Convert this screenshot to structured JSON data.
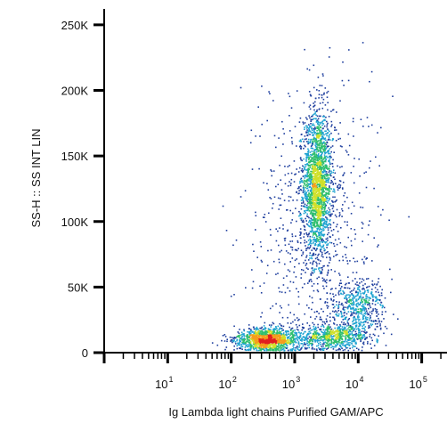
{
  "chart_data": {
    "type": "scatter",
    "style": "flow-cytometry density dot plot",
    "xlabel": "Ig Lambda light chains Purified GAM/APC",
    "ylabel": "SS-H :: SS INT LIN",
    "x_scale": "log",
    "x_range": [
      1,
      250000
    ],
    "x_tick_labels": [
      {
        "value": 10,
        "base": "10",
        "exp": "1"
      },
      {
        "value": 100,
        "base": "10",
        "exp": "2"
      },
      {
        "value": 1000,
        "base": "10",
        "exp": "3"
      },
      {
        "value": 10000,
        "base": "10",
        "exp": "4"
      },
      {
        "value": 100000,
        "base": "10",
        "exp": "5"
      }
    ],
    "y_scale": "linear",
    "y_range": [
      0,
      262144
    ],
    "y_tick_labels": [
      {
        "value": 0,
        "label": "0"
      },
      {
        "value": 50000,
        "label": "50K"
      },
      {
        "value": 100000,
        "label": "100K"
      },
      {
        "value": 150000,
        "label": "150K"
      },
      {
        "value": 200000,
        "label": "200K"
      },
      {
        "value": 250000,
        "label": "250K"
      }
    ],
    "density_colors": [
      "#1f3f9e",
      "#1fa3d1",
      "#2fbf6e",
      "#cfe02a",
      "#f59d1c",
      "#e11f1f"
    ],
    "populations": [
      {
        "x_log10_center": 3.35,
        "x_log10_sd": 0.11,
        "y_center": 130000,
        "y_sd": 28000,
        "weight": 0.36
      },
      {
        "x_log10_center": 2.55,
        "x_log10_sd": 0.25,
        "y_center": 10000,
        "y_sd": 4500,
        "weight": 0.25
      },
      {
        "x_log10_center": 3.6,
        "x_log10_sd": 0.3,
        "y_center": 13000,
        "y_sd": 5000,
        "weight": 0.14
      },
      {
        "x_log10_center": 4.0,
        "x_log10_sd": 0.2,
        "y_center": 36000,
        "y_sd": 11000,
        "weight": 0.1
      },
      {
        "x_log10_center": 3.3,
        "x_log10_sd": 0.45,
        "y_center": 95000,
        "y_sd": 55000,
        "weight": 0.15
      }
    ]
  }
}
